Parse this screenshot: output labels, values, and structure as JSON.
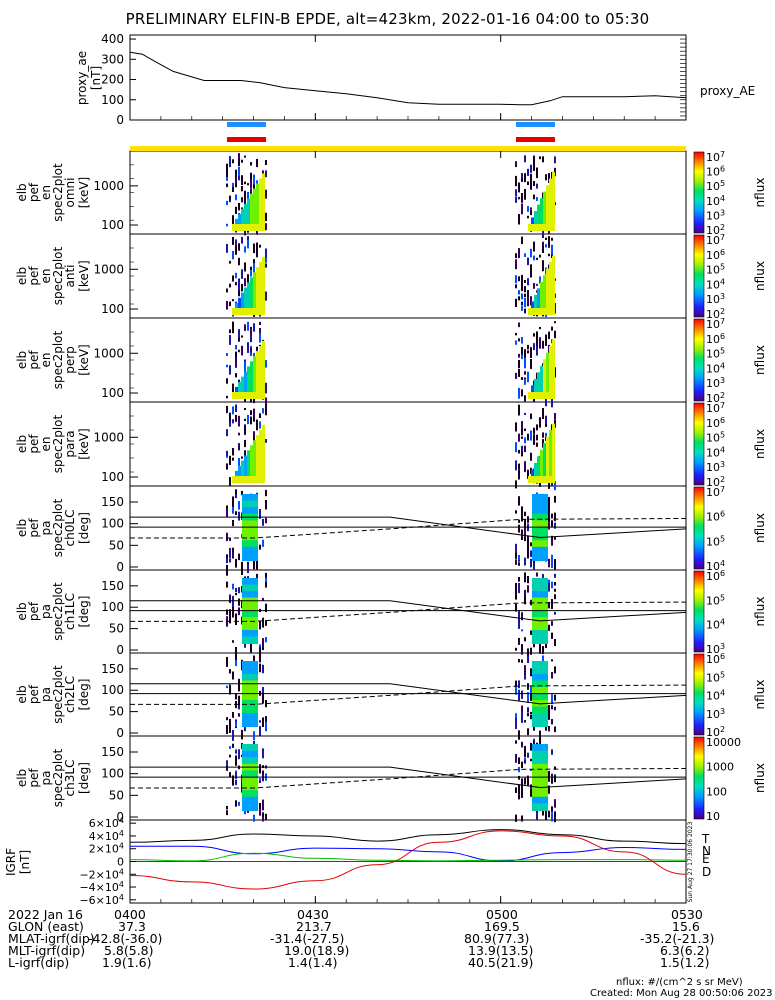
{
  "title": "PRELIMINARY ELFIN-B EPDE, alt=423km, 2022-01-16 04:00 to 05:30",
  "colors": {
    "blue_bar": "#1f8fff",
    "red_bar": "#e60000",
    "yellow_bar": "#ffe000",
    "igrf_T": "#000000",
    "igrf_N": "#0000ff",
    "igrf_E": "#00c000",
    "igrf_D": "#e00000"
  },
  "chart_data": [
    {
      "type": "line",
      "panel": "proxy_ae",
      "ylabel": [
        "proxy_ae",
        "[nT]"
      ],
      "series": [
        {
          "name": "proxy_AE",
          "x": [
            "04:00",
            "04:02",
            "04:04",
            "04:07",
            "04:12",
            "04:18",
            "04:21",
            "04:25",
            "04:30",
            "04:35",
            "04:40",
            "04:45",
            "04:50",
            "04:55",
            "05:00",
            "05:03",
            "05:05",
            "05:08",
            "05:10",
            "05:15",
            "05:20",
            "05:25",
            "05:30"
          ],
          "y": [
            335,
            325,
            290,
            240,
            195,
            195,
            185,
            160,
            145,
            130,
            110,
            85,
            78,
            78,
            78,
            75,
            75,
            95,
            115,
            115,
            115,
            120,
            110
          ]
        }
      ],
      "xlim": [
        "04:00",
        "05:30"
      ],
      "ylim": [
        0,
        420
      ],
      "ytick_labels": [
        "400",
        "300",
        "200",
        "100",
        "0"
      ]
    },
    {
      "type": "heatmap",
      "panel": "omni",
      "ylabel": [
        "elb",
        "pef",
        "en",
        "spec2plot",
        "omni",
        "[keV]"
      ],
      "ytick_labels": [
        "1000",
        "100"
      ],
      "colorbar": {
        "label": "nflux",
        "tick_labels": [
          "10^7",
          "10^6",
          "10^5",
          "10^4",
          "10^3",
          "10^2"
        ]
      }
    },
    {
      "type": "heatmap",
      "panel": "anti",
      "ylabel": [
        "elb",
        "pef",
        "en",
        "spec2plot",
        "anti",
        "[keV]"
      ],
      "ytick_labels": [
        "1000",
        "100"
      ],
      "colorbar": {
        "label": "nflux",
        "tick_labels": [
          "10^7",
          "10^6",
          "10^5",
          "10^4",
          "10^3",
          "10^2"
        ]
      }
    },
    {
      "type": "heatmap",
      "panel": "perp",
      "ylabel": [
        "elb",
        "pef",
        "en",
        "spec2plot",
        "perp",
        "[keV]"
      ],
      "ytick_labels": [
        "1000",
        "100"
      ],
      "colorbar": {
        "label": "nflux",
        "tick_labels": [
          "10^7",
          "10^6",
          "10^5",
          "10^4",
          "10^3",
          "10^2"
        ]
      }
    },
    {
      "type": "heatmap",
      "panel": "para",
      "ylabel": [
        "elb",
        "pef",
        "en",
        "spec2plot",
        "para",
        "[keV]"
      ],
      "ytick_labels": [
        "1000",
        "100"
      ],
      "colorbar": {
        "label": "nflux",
        "tick_labels": [
          "10^7",
          "10^6",
          "10^5",
          "10^4",
          "10^3",
          "10^2"
        ]
      }
    },
    {
      "type": "heatmap",
      "panel": "ch0LC",
      "ylabel": [
        "elb",
        "pef",
        "pa",
        "spec2plot",
        "ch0LC",
        "[deg]"
      ],
      "ytick_labels": [
        "150",
        "100",
        "50",
        "0"
      ],
      "colorbar": {
        "label": "nflux",
        "tick_labels": [
          "10^7",
          "10^6",
          "10^5",
          "10^4"
        ]
      }
    },
    {
      "type": "heatmap",
      "panel": "ch1LC",
      "ylabel": [
        "elb",
        "pef",
        "pa",
        "spec2plot",
        "ch1LC",
        "[deg]"
      ],
      "ytick_labels": [
        "150",
        "100",
        "50",
        "0"
      ],
      "colorbar": {
        "label": "nflux",
        "tick_labels": [
          "10^6",
          "10^5",
          "10^4",
          "10^3"
        ]
      }
    },
    {
      "type": "heatmap",
      "panel": "ch2LC",
      "ylabel": [
        "elb",
        "pef",
        "pa",
        "spec2plot",
        "ch2LC",
        "[deg]"
      ],
      "ytick_labels": [
        "150",
        "100",
        "50",
        "0"
      ],
      "colorbar": {
        "label": "nflux",
        "tick_labels": [
          "10^6",
          "10^5",
          "10^4",
          "10^3",
          "10^2"
        ]
      }
    },
    {
      "type": "heatmap",
      "panel": "ch3LC",
      "ylabel": [
        "elb",
        "pef",
        "pa",
        "spec2plot",
        "ch3LC",
        "[deg]"
      ],
      "ytick_labels": [
        "150",
        "100",
        "50",
        "0"
      ],
      "colorbar": {
        "label": "nflux",
        "tick_labels": [
          "10000",
          "1000",
          "100",
          "10"
        ]
      }
    },
    {
      "type": "line",
      "panel": "IGRF",
      "ylabel": [
        "IGRF",
        "[nT]"
      ],
      "ytick_labels": [
        "6×10^4",
        "4×10^4",
        "2×10^4",
        "0",
        "−2×10^4",
        "−4×10^4",
        "−6×10^4"
      ],
      "ylim": [
        -65000,
        65000
      ],
      "series": [
        {
          "name": "T",
          "x": [
            "04:00",
            "04:10",
            "04:20",
            "04:30",
            "04:40",
            "04:50",
            "05:00",
            "05:10",
            "05:20",
            "05:30"
          ],
          "y": [
            30000,
            33000,
            43000,
            40000,
            32000,
            42000,
            50000,
            42000,
            32000,
            28000
          ]
        },
        {
          "name": "N",
          "x": [
            "04:00",
            "04:10",
            "04:20",
            "04:30",
            "04:40",
            "04:50",
            "05:00",
            "05:10",
            "05:20",
            "05:30"
          ],
          "y": [
            24000,
            24000,
            12000,
            21000,
            20000,
            15000,
            1000,
            14000,
            22000,
            19000
          ]
        },
        {
          "name": "E",
          "x": [
            "04:00",
            "04:10",
            "04:20",
            "04:30",
            "04:40",
            "04:50",
            "05:00",
            "05:10",
            "05:20",
            "05:30"
          ],
          "y": [
            3000,
            1000,
            13000,
            5000,
            2000,
            1000,
            2000,
            3000,
            3000,
            2000
          ]
        },
        {
          "name": "D",
          "x": [
            "04:00",
            "04:10",
            "04:20",
            "04:30",
            "04:40",
            "04:50",
            "05:00",
            "05:10",
            "05:20",
            "05:30"
          ],
          "y": [
            -22000,
            -32000,
            -43000,
            -30000,
            -5000,
            30000,
            48000,
            40000,
            15000,
            -20000
          ]
        }
      ]
    }
  ],
  "right_labels": {
    "proxy_ae": "proxy_AE",
    "T": "T",
    "N": "N",
    "E": "E",
    "D": "D"
  },
  "side_stamp": "Sun Aug 27 17:30:06 2023",
  "footer": {
    "rows": [
      {
        "label": "2022 Jan 16",
        "values": [
          "0400",
          "0430",
          "0500",
          "0530"
        ]
      },
      {
        "label": "GLON (east)",
        "values": [
          "37.3",
          "213.7",
          "169.5",
          "15.6"
        ]
      },
      {
        "label": "MLAT-igrf(dip)",
        "values": [
          "-42.8(-36.0)",
          "-31.4(-27.5)",
          "80.9(77.3)",
          "-35.2(-21.3)"
        ]
      },
      {
        "label": "MLT-igrf(dip)",
        "values": [
          "5.8(5.8)",
          "19.0(18.9)",
          "13.9(13.5)",
          "6.3(6.2)"
        ]
      },
      {
        "label": "L-igrf(dip)",
        "values": [
          "1.9(1.6)",
          "1.4(1.4)",
          "40.5(21.9)",
          "1.5(1.2)"
        ]
      }
    ],
    "units_note": "nflux: #/(cm^2 s sr MeV)",
    "created": "Created: Mon Aug 28 00:50:06 2023"
  }
}
